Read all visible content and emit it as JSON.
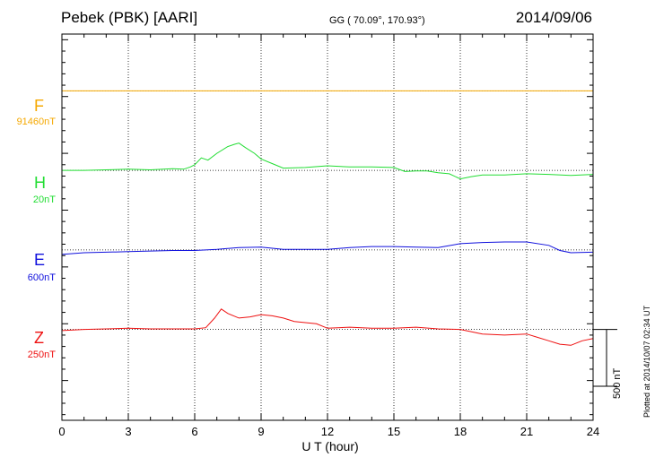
{
  "header": {
    "station": "Pebek (PBK)  [AARI]",
    "coords": "GG ( 70.09°, 170.93°)",
    "date": "2014/09/06"
  },
  "components": [
    {
      "letter": "F",
      "scale": "91460nT",
      "color": "#f5a800"
    },
    {
      "letter": "H",
      "scale": "20nT",
      "color": "#22dd33"
    },
    {
      "letter": "E",
      "scale": "600nT",
      "color": "#1010dd"
    },
    {
      "letter": "Z",
      "scale": "250nT",
      "color": "#ee1111"
    }
  ],
  "footer": {
    "xlabel": "U T (hour)",
    "plotted": "Plotted at 2014/10/07 02:34 UT",
    "scalebar": "500 nT"
  },
  "chart_data": {
    "type": "line",
    "title": "Pebek (PBK)  [AARI]",
    "xlabel": "U T (hour)",
    "xlim": [
      0,
      24
    ],
    "xticks": [
      0,
      3,
      6,
      9,
      12,
      15,
      18,
      21,
      24
    ],
    "ylim": [
      -1850,
      1550
    ],
    "scale_bar_nT": 500,
    "grid": true,
    "series": [
      {
        "name": "F",
        "baseline": 91460,
        "baseline_offset": 1050,
        "color": "#f5a800",
        "x": [
          0,
          24
        ],
        "y": [
          0,
          0
        ]
      },
      {
        "name": "H",
        "baseline": 20,
        "baseline_offset": 350,
        "color": "#22dd33",
        "x": [
          0,
          1,
          2,
          3,
          4,
          5,
          5.5,
          5.8,
          6.0,
          6.3,
          6.6,
          7.0,
          7.5,
          7.8,
          8.0,
          8.3,
          8.7,
          9.0,
          9.5,
          10,
          11,
          12,
          13,
          14,
          15,
          15.5,
          16,
          16.5,
          17,
          17.5,
          18,
          18.5,
          19,
          20,
          21,
          22,
          23,
          24
        ],
        "y": [
          0,
          0,
          5,
          10,
          5,
          15,
          10,
          30,
          50,
          110,
          90,
          150,
          210,
          230,
          240,
          200,
          150,
          100,
          60,
          20,
          25,
          40,
          30,
          30,
          25,
          -10,
          -5,
          -5,
          -20,
          -30,
          -75,
          -55,
          -40,
          -40,
          -30,
          -35,
          -45,
          -35
        ]
      },
      {
        "name": "E",
        "baseline": 600,
        "baseline_offset": -350,
        "color": "#1010dd",
        "x": [
          0,
          1,
          2,
          3,
          4,
          5,
          6,
          7,
          8,
          9,
          10,
          11,
          12,
          13,
          14,
          15,
          16,
          17,
          18,
          19,
          20,
          21,
          22,
          22.5,
          23,
          24
        ],
        "y": [
          -40,
          -25,
          -20,
          -15,
          -10,
          -5,
          -5,
          5,
          20,
          25,
          5,
          5,
          5,
          20,
          30,
          30,
          25,
          20,
          55,
          65,
          70,
          70,
          40,
          -5,
          -25,
          -20
        ]
      },
      {
        "name": "Z",
        "baseline": 250,
        "baseline_offset": -1050,
        "color": "#ee1111",
        "x": [
          0,
          1,
          2,
          3,
          4,
          5,
          6,
          6.5,
          6.9,
          7.2,
          7.5,
          8.0,
          8.5,
          9.0,
          9.5,
          10,
          10.5,
          11,
          11.5,
          12,
          13,
          14,
          15,
          16,
          17,
          18,
          19,
          20,
          21,
          21.5,
          22,
          22.5,
          23,
          23.5,
          24
        ],
        "y": [
          -10,
          0,
          5,
          10,
          5,
          5,
          5,
          15,
          100,
          180,
          140,
          100,
          110,
          130,
          120,
          100,
          70,
          60,
          50,
          10,
          20,
          10,
          10,
          20,
          5,
          0,
          -40,
          -50,
          -40,
          -70,
          -100,
          -130,
          -140,
          -100,
          -80
        ]
      }
    ]
  }
}
